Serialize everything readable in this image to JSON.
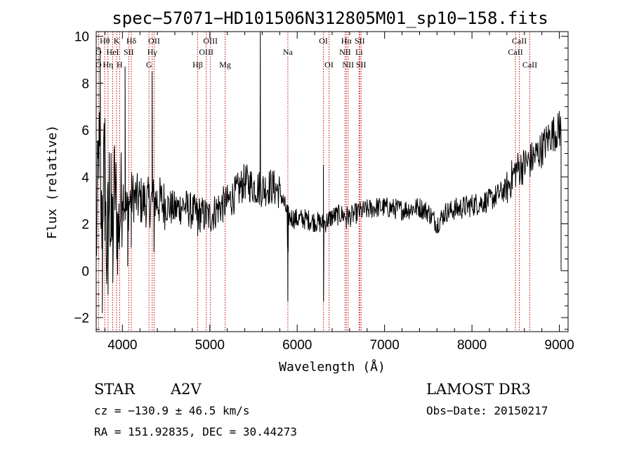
{
  "chart_data": {
    "type": "line",
    "title": "spec−57071−HD101506N312805M01_sp10−158.fits",
    "xlabel": "Wavelength (Å)",
    "ylabel": "Flux (relative)",
    "xlim": [
      3700,
      9100
    ],
    "ylim": [
      -2.6,
      10.2
    ],
    "xticks": [
      4000,
      5000,
      6000,
      7000,
      8000,
      9000
    ],
    "yticks": [
      -2,
      0,
      2,
      4,
      6,
      8,
      10
    ],
    "x_minor_step": 200,
    "y_minor_step": 0.5,
    "grid": false,
    "spectrum_color": "#000000",
    "line_marker_color": "#cc0000",
    "spectrum_anchors": [
      [
        3700,
        0.8
      ],
      [
        3730,
        5.5
      ],
      [
        3760,
        2.0
      ],
      [
        3790,
        4.5
      ],
      [
        3820,
        0.5
      ],
      [
        3850,
        3.5
      ],
      [
        3880,
        1.0
      ],
      [
        3910,
        3.8
      ],
      [
        3950,
        1.5
      ],
      [
        4000,
        3.5
      ],
      [
        4050,
        2.5
      ],
      [
        4100,
        3.2
      ],
      [
        4200,
        3.0
      ],
      [
        4300,
        2.9
      ],
      [
        4400,
        3.0
      ],
      [
        4500,
        2.8
      ],
      [
        4600,
        2.6
      ],
      [
        4700,
        2.8
      ],
      [
        4800,
        2.5
      ],
      [
        4900,
        2.4
      ],
      [
        5000,
        2.3
      ],
      [
        5100,
        2.7
      ],
      [
        5200,
        2.9
      ],
      [
        5300,
        3.3
      ],
      [
        5400,
        3.8
      ],
      [
        5500,
        3.6
      ],
      [
        5600,
        3.5
      ],
      [
        5700,
        3.6
      ],
      [
        5800,
        3.4
      ],
      [
        5900,
        2.3
      ],
      [
        6000,
        2.2
      ],
      [
        6100,
        2.2
      ],
      [
        6200,
        2.1
      ],
      [
        6300,
        2.0
      ],
      [
        6400,
        2.3
      ],
      [
        6500,
        2.4
      ],
      [
        6600,
        2.3
      ],
      [
        6700,
        2.5
      ],
      [
        6800,
        2.6
      ],
      [
        6900,
        2.7
      ],
      [
        7000,
        2.7
      ],
      [
        7200,
        2.6
      ],
      [
        7400,
        2.7
      ],
      [
        7500,
        2.5
      ],
      [
        7600,
        2.0
      ],
      [
        7700,
        2.5
      ],
      [
        7800,
        2.6
      ],
      [
        8000,
        2.8
      ],
      [
        8200,
        3.0
      ],
      [
        8400,
        3.5
      ],
      [
        8500,
        4.3
      ],
      [
        8600,
        4.5
      ],
      [
        8700,
        4.8
      ],
      [
        8800,
        5.2
      ],
      [
        8900,
        5.8
      ],
      [
        9000,
        6.0
      ]
    ],
    "spectrum_spikes": [
      [
        3745,
        9.5
      ],
      [
        3770,
        -1.8
      ],
      [
        3800,
        6.5
      ],
      [
        3835,
        -1.0
      ],
      [
        3870,
        5.0
      ],
      [
        3890,
        -0.5
      ],
      [
        4030,
        8.7
      ],
      [
        4060,
        0.2
      ],
      [
        4101,
        1.0
      ],
      [
        4340,
        8.5
      ],
      [
        4362,
        0.8
      ],
      [
        4861,
        1.5
      ],
      [
        5578,
        10.2
      ],
      [
        5889,
        1.0
      ],
      [
        5893,
        -1.3
      ],
      [
        5897,
        0.8
      ],
      [
        6300,
        4.5
      ],
      [
        6302,
        -1.3
      ],
      [
        6364,
        2.0
      ],
      [
        6563,
        1.8
      ],
      [
        7605,
        1.6
      ],
      [
        9000,
        6.8
      ],
      [
        9020,
        0.0
      ]
    ],
    "lines": [
      {
        "label": "Hθ",
        "x": 3798,
        "row": 1
      },
      {
        "label": "K",
        "x": 3934,
        "row": 1
      },
      {
        "label": "Hδ",
        "x": 4102,
        "row": 1
      },
      {
        "label": "OII",
        "x": 4363,
        "row": 1
      },
      {
        "label": "OIII",
        "x": 5007,
        "row": 1
      },
      {
        "label": "OI",
        "x": 6300,
        "row": 1
      },
      {
        "label": "Hα",
        "x": 6563,
        "row": 1
      },
      {
        "label": "SII",
        "x": 6716,
        "row": 1
      },
      {
        "label": "CaII",
        "x": 8542,
        "row": 1
      },
      {
        "label": "O",
        "x": 3727,
        "row": 2
      },
      {
        "label": "HeI",
        "x": 3889,
        "row": 2
      },
      {
        "label": "SII",
        "x": 4072,
        "row": 2
      },
      {
        "label": "Hγ",
        "x": 4341,
        "row": 2
      },
      {
        "label": "OIII",
        "x": 4959,
        "row": 2
      },
      {
        "label": "Na",
        "x": 5893,
        "row": 2
      },
      {
        "label": "NII",
        "x": 6548,
        "row": 2
      },
      {
        "label": "Li",
        "x": 6708,
        "row": 2
      },
      {
        "label": "CaII",
        "x": 8498,
        "row": 2
      },
      {
        "label": "O",
        "x": 3727,
        "row": 3
      },
      {
        "label": "Hη",
        "x": 3835,
        "row": 3
      },
      {
        "label": "H",
        "x": 3968,
        "row": 3
      },
      {
        "label": "G",
        "x": 4304,
        "row": 3
      },
      {
        "label": "Hβ",
        "x": 4861,
        "row": 3
      },
      {
        "label": "Mg",
        "x": 5175,
        "row": 3
      },
      {
        "label": "OI",
        "x": 6364,
        "row": 3
      },
      {
        "label": "NII",
        "x": 6583,
        "row": 3
      },
      {
        "label": "SII",
        "x": 6731,
        "row": 3
      },
      {
        "label": "CaII",
        "x": 8662,
        "row": 3
      }
    ]
  },
  "info": {
    "class": "STAR",
    "subclass": "A2V",
    "survey": "LAMOST DR3",
    "cz": "cz = −130.9 ± 46.5 km/s",
    "obs_date": "Obs−Date: 20150217",
    "radec": "RA = 151.92835, DEC =  30.44273"
  }
}
